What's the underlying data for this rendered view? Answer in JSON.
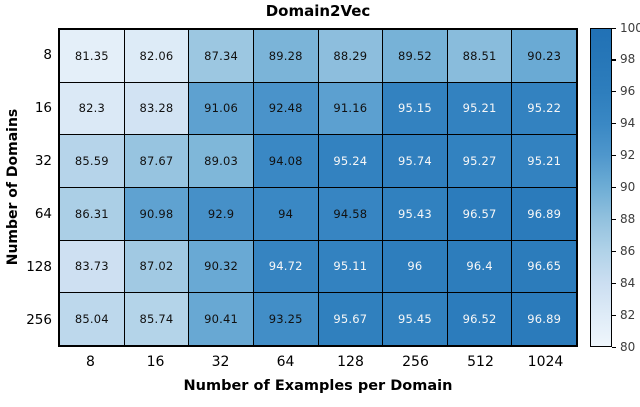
{
  "chart_data": {
    "type": "heatmap",
    "title": "Domain2Vec",
    "xlabel": "Number of Examples per Domain",
    "ylabel": "Number of Domains",
    "x_categories": [
      "8",
      "16",
      "32",
      "64",
      "128",
      "256",
      "512",
      "1024"
    ],
    "y_categories": [
      "8",
      "16",
      "32",
      "64",
      "128",
      "256"
    ],
    "values": [
      [
        "81.35",
        "82.06",
        "87.34",
        "89.28",
        "88.29",
        "89.52",
        "88.51",
        "90.23"
      ],
      [
        "82.3",
        "83.28",
        "91.06",
        "92.48",
        "91.16",
        "95.15",
        "95.21",
        "95.22"
      ],
      [
        "85.59",
        "87.67",
        "89.03",
        "94.08",
        "95.24",
        "95.74",
        "95.27",
        "95.21"
      ],
      [
        "86.31",
        "90.98",
        "92.9",
        "94",
        "94.58",
        "95.43",
        "96.57",
        "96.89"
      ],
      [
        "83.73",
        "87.02",
        "90.32",
        "94.72",
        "95.11",
        "96",
        "96.4",
        "96.65"
      ],
      [
        "85.04",
        "85.74",
        "90.41",
        "93.25",
        "95.67",
        "95.45",
        "96.52",
        "96.89"
      ]
    ],
    "colorbar": {
      "min": 80,
      "max": 100,
      "ticks": [
        "100",
        "98",
        "96",
        "94",
        "92",
        "90",
        "88",
        "86",
        "84",
        "82",
        "80"
      ]
    },
    "colormap": {
      "name": "Blues",
      "stops": [
        [
          0.0,
          "#eff6fc"
        ],
        [
          0.1,
          "#deebf7"
        ],
        [
          0.2,
          "#cbdef1"
        ],
        [
          0.3,
          "#b0d2e8"
        ],
        [
          0.4,
          "#92c1de"
        ],
        [
          0.5,
          "#6eadd5"
        ],
        [
          0.6,
          "#4f97cc"
        ],
        [
          0.7,
          "#3a88c4"
        ],
        [
          0.8,
          "#2e7ebd"
        ],
        [
          0.9,
          "#2777b8"
        ],
        [
          1.0,
          "#2171b5"
        ]
      ]
    },
    "white_text_threshold": 94.7,
    "grid_on": true,
    "legend_position": "right-colorbar"
  }
}
